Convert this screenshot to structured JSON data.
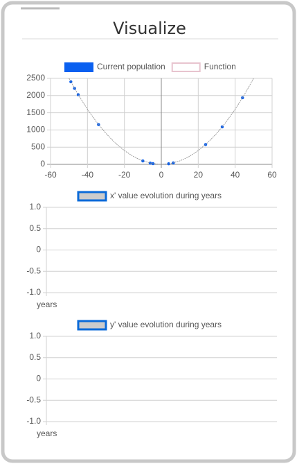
{
  "title": "Visualize",
  "chart_data": [
    {
      "type": "scatter",
      "grid": true,
      "xlim": [
        -60,
        60
      ],
      "xticks": [
        -60,
        -40,
        -20,
        0,
        20,
        40,
        60
      ],
      "ylim": [
        0,
        2500
      ],
      "yticks": [
        0,
        500,
        1000,
        1500,
        2000,
        2500
      ],
      "series": [
        {
          "name": "Current population",
          "color": "#0a60f0",
          "border_color": "#0a60f0",
          "x": [
            -49,
            -47,
            -45,
            -34,
            -10,
            -6,
            -4.5,
            4,
            6.5,
            24,
            33,
            44
          ],
          "values": [
            2401,
            2209,
            2025,
            1156,
            100,
            36,
            20.25,
            16,
            42.25,
            576,
            1089,
            1936
          ]
        },
        {
          "name": "Function",
          "type": "line",
          "color": "#888888",
          "border_color": "#e8c4cf",
          "fill": "#ffffff",
          "x": [
            -50,
            -45,
            -40,
            -35,
            -30,
            -25,
            -20,
            -15,
            -10,
            -5,
            0,
            5,
            10,
            15,
            20,
            25,
            30,
            35,
            40,
            45,
            50
          ],
          "values": [
            2500,
            2025,
            1600,
            1225,
            900,
            625,
            400,
            225,
            100,
            25,
            0,
            25,
            100,
            225,
            400,
            625,
            900,
            1225,
            1600,
            2025,
            2500
          ]
        }
      ]
    },
    {
      "type": "line",
      "grid": true,
      "xlabel": "years",
      "ylim": [
        -1,
        1
      ],
      "yticks": [
        {
          "value": 1,
          "label": "1.0"
        },
        {
          "value": 0.5,
          "label": "0.5"
        },
        0,
        {
          "value": -0.5,
          "label": "-0.5"
        },
        {
          "value": -1,
          "label": "-1.0"
        }
      ],
      "series": [
        {
          "name": "x' value evolution during years",
          "color": "#cccccc",
          "border_color": "#0a6ad8",
          "values": []
        }
      ]
    },
    {
      "type": "line",
      "grid": true,
      "xlabel": "years",
      "ylim": [
        -1,
        1
      ],
      "yticks": [
        {
          "value": 1,
          "label": "1.0"
        },
        {
          "value": 0.5,
          "label": "0.5"
        },
        0,
        {
          "value": -0.5,
          "label": "-0.5"
        },
        {
          "value": -1,
          "label": "-1.0"
        }
      ],
      "series": [
        {
          "name": "y' value evolution during years",
          "color": "#cccccc",
          "border_color": "#0a6ad8",
          "values": []
        }
      ]
    }
  ]
}
